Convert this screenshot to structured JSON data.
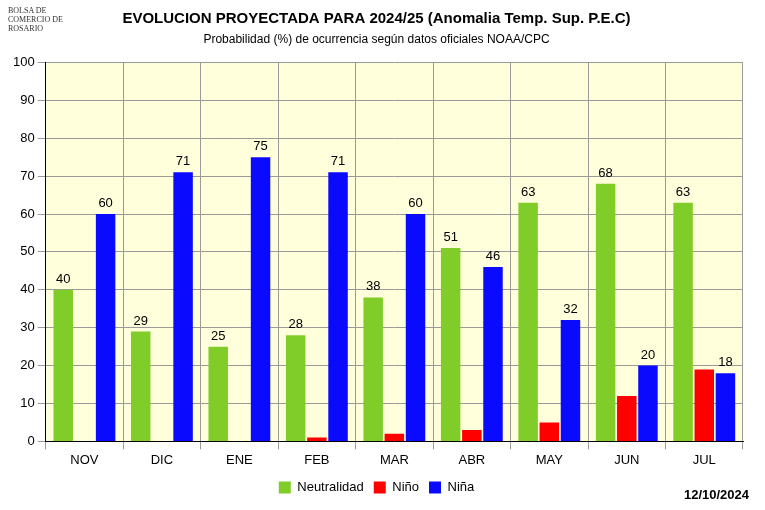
{
  "chart_data": {
    "type": "bar",
    "title": "EVOLUCION PROYECTADA PARA 2024/25 (Anomalia Temp. Sup. P.E.C)",
    "subtitle": "Probabilidad (%) de ocurrencia según datos oficiales NOAA/CPC",
    "annotations": [
      "BOLSA DE COMERCIO DE ROSARIO",
      "12/10/2024"
    ],
    "categories": [
      "NOV",
      "DIC",
      "ENE",
      "FEB",
      "MAR",
      "ABR",
      "MAY",
      "JUN",
      "JUL"
    ],
    "series": [
      {
        "name": "Neutralidad",
        "color": "#80cc28",
        "values": [
          40,
          29,
          25,
          28,
          38,
          51,
          63,
          68,
          63
        ],
        "data_labels": true
      },
      {
        "name": "Niño",
        "color": "#ff0000",
        "values": [
          0,
          0,
          0,
          1,
          2,
          3,
          5,
          12,
          19
        ],
        "data_labels": false
      },
      {
        "name": "Niña",
        "color": "#0a0aff",
        "values": [
          60,
          71,
          75,
          71,
          60,
          46,
          32,
          20,
          18
        ],
        "data_labels": true
      }
    ],
    "ylim": [
      0,
      100
    ],
    "yticks": [
      0,
      10,
      20,
      30,
      40,
      50,
      60,
      70,
      80,
      90,
      100
    ],
    "grid": true,
    "legend": "bottom"
  }
}
